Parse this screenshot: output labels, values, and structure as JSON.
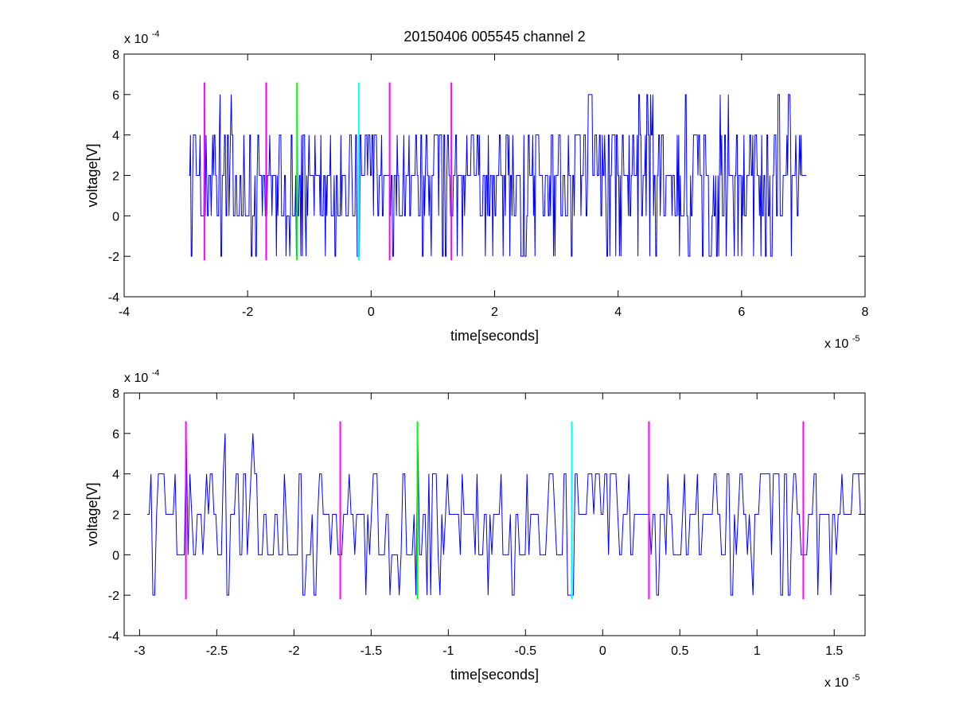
{
  "chart_data": [
    {
      "type": "line",
      "title": "20150406 005545 channel 2",
      "xlabel": "time[seconds]",
      "ylabel": "voltage[V]",
      "xlim": [
        -4e-05,
        8e-05
      ],
      "ylim": [
        -0.0004,
        0.0008
      ],
      "x_ticks": [
        -4,
        -2,
        0,
        2,
        4,
        6,
        8
      ],
      "y_ticks": [
        -4,
        -2,
        0,
        2,
        4,
        6,
        8
      ],
      "x_exponent": {
        "base": "x 10",
        "power": "-5"
      },
      "y_exponent": {
        "base": "x 10",
        "power": "-4"
      },
      "grid": false,
      "signal": {
        "color": "#0000ff",
        "x_start": -2.95e-05,
        "x_end": 7.05e-05,
        "levels": [
          -0.0002,
          0,
          0.0002,
          0.0004,
          0.0006
        ],
        "note_values": "quantized noise around 2e-4 V, estimated"
      },
      "markers": [
        {
          "x": -2.7e-05,
          "color": "#ff00ff",
          "y_range": [
            -0.00022,
            0.00066
          ]
        },
        {
          "x": -1.7e-05,
          "color": "#ff00ff",
          "y_range": [
            -0.00022,
            0.00066
          ]
        },
        {
          "x": -1.2e-05,
          "color": "#00ff00",
          "y_range": [
            -0.00022,
            0.00066
          ]
        },
        {
          "x": -2e-06,
          "color": "#00ffff",
          "y_range": [
            -0.00022,
            0.00066
          ]
        },
        {
          "x": 3e-06,
          "color": "#ff00ff",
          "y_range": [
            -0.00022,
            0.00066
          ]
        },
        {
          "x": 1.3e-05,
          "color": "#ff00ff",
          "y_range": [
            -0.00022,
            0.00066
          ]
        }
      ]
    },
    {
      "type": "line",
      "title": "",
      "xlabel": "time[seconds]",
      "ylabel": "voltage[V]",
      "xlim": [
        -3.1e-05,
        1.7e-05
      ],
      "ylim": [
        -0.0004,
        0.0008
      ],
      "x_ticks": [
        -3,
        -2.5,
        -2,
        -1.5,
        -1,
        -0.5,
        0,
        0.5,
        1,
        1.5
      ],
      "y_ticks": [
        -4,
        -2,
        0,
        2,
        4,
        6,
        8
      ],
      "x_exponent": {
        "base": "x 10",
        "power": "-5"
      },
      "y_exponent": {
        "base": "x 10",
        "power": "-4"
      },
      "grid": false,
      "signal": {
        "color": "#0000ff",
        "x_start": -2.95e-05,
        "x_end": 1.7e-05,
        "levels": [
          -0.0002,
          0,
          0.0002,
          0.0004,
          0.0006
        ]
      },
      "markers": [
        {
          "x": -2.7e-05,
          "color": "#ff00ff",
          "y_range": [
            -0.00022,
            0.00066
          ]
        },
        {
          "x": -1.7e-05,
          "color": "#ff00ff",
          "y_range": [
            -0.00022,
            0.00066
          ]
        },
        {
          "x": -1.2e-05,
          "color": "#00ff00",
          "y_range": [
            -0.00022,
            0.00066
          ]
        },
        {
          "x": -2e-06,
          "color": "#00ffff",
          "y_range": [
            -0.00022,
            0.00066
          ]
        },
        {
          "x": 3e-06,
          "color": "#ff00ff",
          "y_range": [
            -0.00022,
            0.00066
          ]
        },
        {
          "x": 1.3e-05,
          "color": "#ff00ff",
          "y_range": [
            -0.00022,
            0.00066
          ]
        }
      ]
    }
  ]
}
